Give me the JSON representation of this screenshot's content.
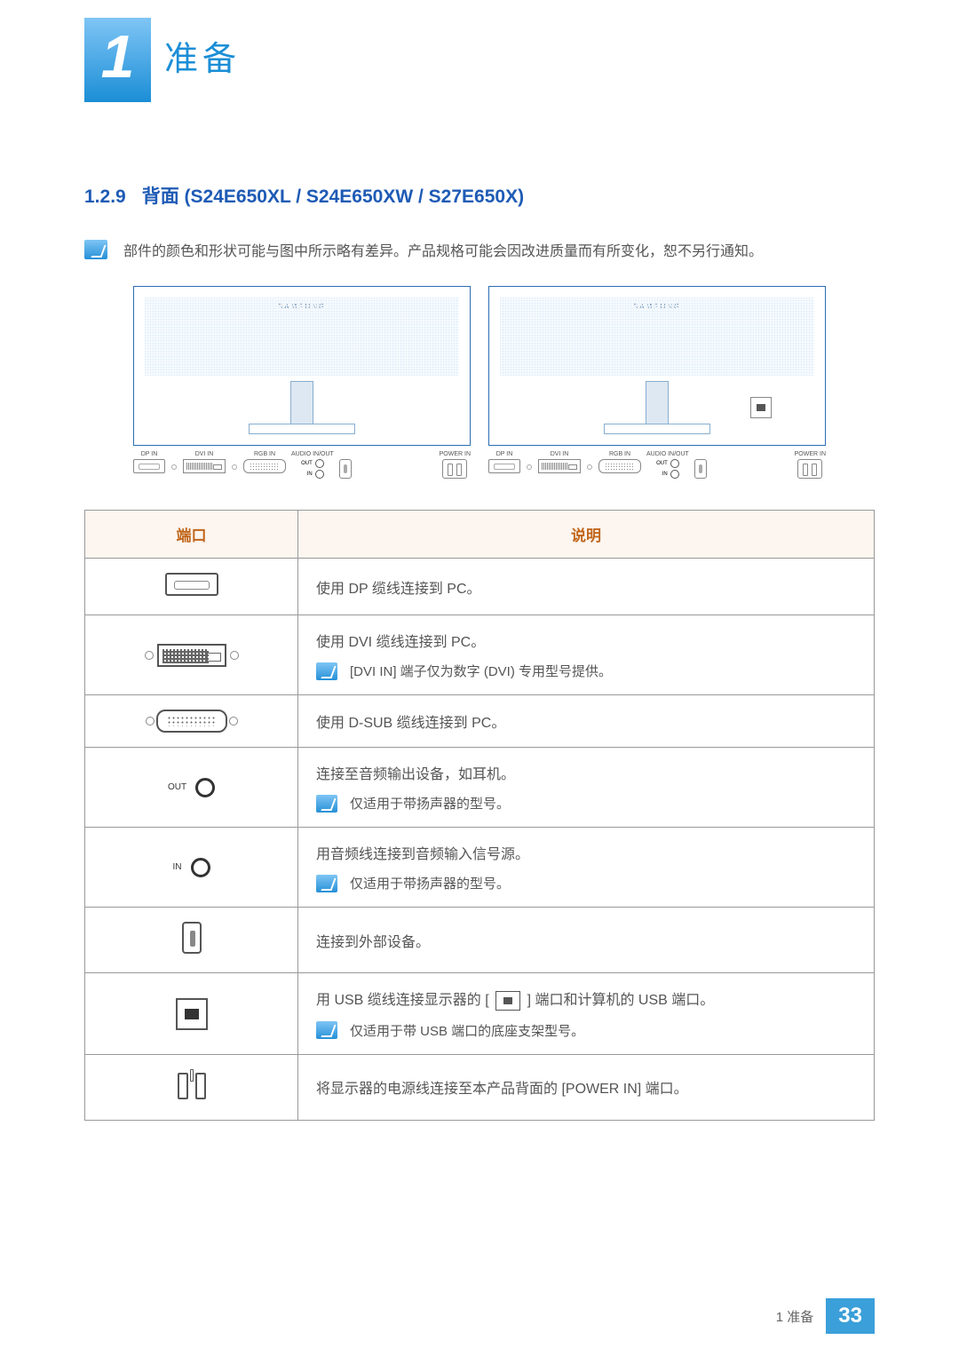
{
  "chapter": {
    "number": "1",
    "title": "准备"
  },
  "section": {
    "number": "1.2.9",
    "title": "背面 (S24E650XL / S24E650XW / S27E650X)"
  },
  "intro_note": "部件的颜色和形状可能与图中所示略有差异。产品规格可能会因改进质量而有所变化，恕不另行通知。",
  "diagram_labels": {
    "brand": "SAMSUNG",
    "dp": "DP IN",
    "dvi": "DVI IN",
    "rgb": "RGB IN",
    "audio": "AUDIO IN/OUT",
    "out": "OUT",
    "in": "IN",
    "power": "POWER IN"
  },
  "table": {
    "headers": {
      "port": "端口",
      "desc": "说明"
    },
    "rows": [
      {
        "desc": "使用 DP 缆线连接到 PC。"
      },
      {
        "desc": "使用 DVI 缆线连接到 PC。",
        "note": "[DVI IN] 端子仅为数字 (DVI) 专用型号提供。"
      },
      {
        "desc": "使用 D-SUB 缆线连接到 PC。"
      },
      {
        "desc": "连接至音频输出设备，如耳机。",
        "note": "仅适用于带扬声器的型号。"
      },
      {
        "desc": "用音频线连接到音频输入信号源。",
        "note": "仅适用于带扬声器的型号。"
      },
      {
        "desc": "连接到外部设备。"
      },
      {
        "desc_pre": "用 USB 缆线连接显示器的 [ ",
        "desc_post": " ] 端口和计算机的 USB 端口。",
        "note": "仅适用于带 USB 端口的底座支架型号。"
      },
      {
        "desc": "将显示器的电源线连接至本产品背面的 [POWER IN] 端口。"
      }
    ]
  },
  "footer": {
    "chapter_ref": "1 准备",
    "page": "33"
  },
  "colors": {
    "accent": "#1e5bb5",
    "badge_grad_top": "#7fc5f5",
    "badge_grad_bot": "#1b8ed6",
    "th_bg": "#fdf5ef",
    "th_color": "#c0661b",
    "footer_bg": "#3b9fd9"
  }
}
